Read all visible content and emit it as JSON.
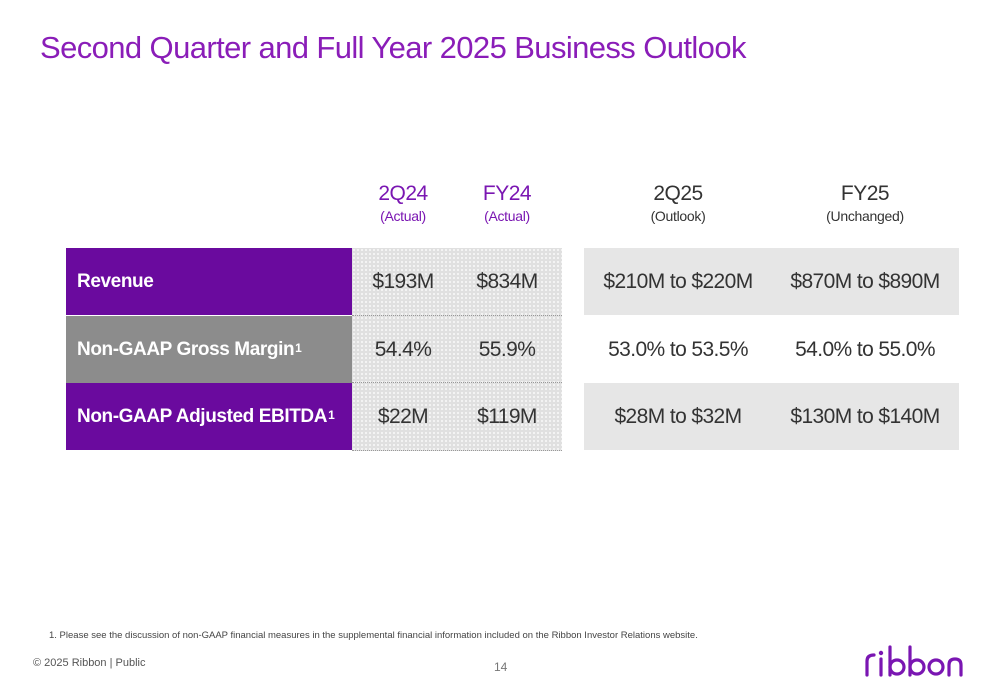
{
  "title": "Second Quarter and Full Year 2025 Business Outlook",
  "columns": [
    {
      "main": "2Q24",
      "sub": "(Actual)"
    },
    {
      "main": "FY24",
      "sub": "(Actual)"
    },
    {
      "main": "2Q25",
      "sub": "(Outlook)"
    },
    {
      "main": "FY25",
      "sub": "(Unchanged)"
    }
  ],
  "rows": [
    {
      "label": "Revenue",
      "sup": "",
      "values": [
        "$193M",
        "$834M",
        "$210M to $220M",
        "$870M to $890M"
      ]
    },
    {
      "label": "Non-GAAP Gross Margin",
      "sup": "1",
      "values": [
        "54.4%",
        "55.9%",
        "53.0% to 53.5%",
        "54.0% to 55.0%"
      ]
    },
    {
      "label": "Non-GAAP Adjusted EBITDA",
      "sup": "1",
      "values": [
        "$22M",
        "$119M",
        "$28M to $32M",
        "$130M to $140M"
      ]
    }
  ],
  "footnote": "1.  Please see the discussion of non-GAAP financial measures in the supplemental financial information included on the Ribbon Investor Relations website.",
  "copyright": "© 2025 Ribbon | Public",
  "page_number": "14",
  "logo_text": "ribbon",
  "colors": {
    "title": "#8a1db8",
    "purple_band": "#6a0a9e",
    "gray_band": "#8c8c8c",
    "light_band": "#e6e6e6",
    "logo": "#7a16b2"
  }
}
